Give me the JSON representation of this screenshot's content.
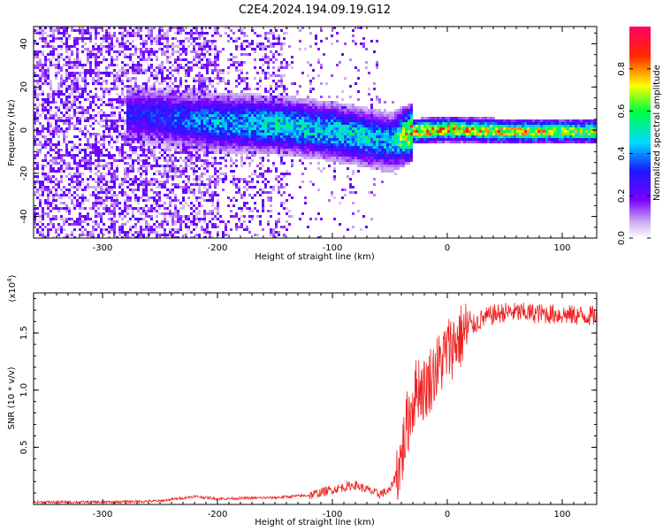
{
  "title": "C2E4.2024.194.09.19.G12",
  "colors": {
    "snr_line": "#ee2222",
    "axis": "#000000"
  },
  "chart_data": [
    {
      "type": "heatmap",
      "title": "",
      "xlabel": "Height of straight line (km)",
      "ylabel": "Frequency (Hz)",
      "xlim": [
        -360,
        130
      ],
      "ylim": [
        -50,
        48
      ],
      "x_ticks": [
        "-300",
        "-200",
        "-100",
        "0",
        "100"
      ],
      "y_ticks": [
        "-40",
        "-20",
        "0",
        "20",
        "40"
      ],
      "colorbar": {
        "label": "Normalized spectral amplitude",
        "range": [
          0,
          1
        ],
        "ticks": [
          "0.0",
          "0.2",
          "0.4",
          "0.6",
          "0.8"
        ],
        "colormap": "rainbow (white-violet-blue-cyan-green-yellow-red-magenta)"
      },
      "ridge": {
        "description": "main spectral line: scattered noise at low heights, band forming near -270 km and converging to a narrow line near 0 Hz above -30 km",
        "points": [
          {
            "x": -270,
            "center_hz": 8,
            "amplitude": 0.3
          },
          {
            "x": -240,
            "center_hz": 6,
            "amplitude": 0.35
          },
          {
            "x": -200,
            "center_hz": 4,
            "amplitude": 0.45
          },
          {
            "x": -150,
            "center_hz": 3,
            "amplitude": 0.5
          },
          {
            "x": -100,
            "center_hz": 0,
            "amplitude": 0.5
          },
          {
            "x": -70,
            "center_hz": -3,
            "amplitude": 0.5
          },
          {
            "x": -50,
            "center_hz": -5,
            "amplitude": 0.45
          },
          {
            "x": -30,
            "center_hz": 0,
            "amplitude": 0.85
          },
          {
            "x": 0,
            "center_hz": 1,
            "amplitude": 0.8
          },
          {
            "x": 50,
            "center_hz": 0,
            "amplitude": 0.75
          },
          {
            "x": 100,
            "center_hz": 0,
            "amplitude": 0.7
          },
          {
            "x": 130,
            "center_hz": 0,
            "amplitude": 0.7
          }
        ]
      }
    },
    {
      "type": "line",
      "title": "",
      "xlabel": "Height of straight line (km)",
      "ylabel": "SNR (10 * v/v)",
      "y_multiplier": "(x10",
      "y_multiplier_exp": "4",
      "y_multiplier_close": ")",
      "xlim": [
        -360,
        130
      ],
      "ylim": [
        0,
        1.85
      ],
      "x_ticks": [
        "-300",
        "-200",
        "-100",
        "0",
        "100"
      ],
      "y_ticks": [
        "0.5",
        "1.0",
        "1.5"
      ],
      "series": [
        {
          "color": "#ee2222",
          "x": [
            -360,
            -300,
            -250,
            -220,
            -200,
            -150,
            -120,
            -100,
            -90,
            -80,
            -70,
            -60,
            -50,
            -45,
            -40,
            -35,
            -30,
            -25,
            -20,
            -15,
            -10,
            -5,
            0,
            10,
            20,
            30,
            40,
            50,
            60,
            80,
            100,
            120,
            130
          ],
          "y": [
            0.02,
            0.02,
            0.03,
            0.07,
            0.05,
            0.06,
            0.08,
            0.13,
            0.15,
            0.17,
            0.13,
            0.09,
            0.12,
            0.25,
            0.4,
            0.7,
            0.9,
            1.05,
            1.0,
            1.1,
            1.18,
            1.25,
            1.35,
            1.45,
            1.55,
            1.62,
            1.66,
            1.68,
            1.68,
            1.67,
            1.66,
            1.65,
            1.65
          ]
        }
      ]
    }
  ]
}
